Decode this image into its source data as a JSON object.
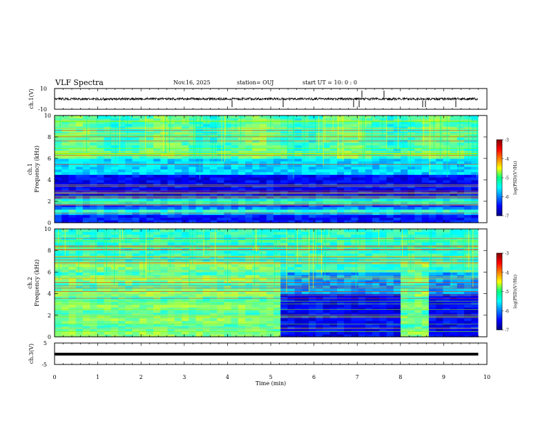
{
  "header": {
    "title": "VLF Spectra",
    "date": "Nov.16, 2025",
    "station": "station= OUJ",
    "start_ut": "start UT =   10: 0  : 0"
  },
  "chart_data": [
    {
      "id": "ch1-waveform",
      "type": "line",
      "ylabel": "ch.1(V)",
      "ylim": [
        -10,
        10
      ],
      "y_ticks": [
        "10",
        "-10"
      ],
      "baseline_level": 0,
      "xlim": [
        0,
        10
      ]
    },
    {
      "id": "ch1-spectrogram",
      "type": "heatmap",
      "ylabel": "ch.1\nFrequency (kHz)",
      "y_ticks": [
        "0",
        "2",
        "4",
        "6",
        "8",
        "10"
      ],
      "ylim": [
        0,
        10
      ],
      "xlim": [
        0,
        10
      ],
      "data_end_min": 9.8,
      "colorbar": {
        "label": "log(PSD)(V²/Hz)",
        "ticks": [
          "-3",
          "-4",
          "-5",
          "-6",
          "-7"
        ],
        "range": [
          -7,
          -3
        ]
      }
    },
    {
      "id": "ch2-spectrogram",
      "type": "heatmap",
      "ylabel": "ch.2\nFrequency (kHz)",
      "y_ticks": [
        "0",
        "2",
        "4",
        "6",
        "8",
        "10"
      ],
      "ylim": [
        0,
        10
      ],
      "xlim": [
        0,
        10
      ],
      "data_end_min": 9.8,
      "regime_change_min": 5.18,
      "quiet_gap_min": [
        8.05,
        8.58
      ],
      "colorbar": {
        "label": "log(PSD)(V²/Hz)",
        "ticks": [
          "-3",
          "-4",
          "-5",
          "-6",
          "-7"
        ],
        "range": [
          -7,
          -3
        ]
      }
    },
    {
      "id": "ch3-trace",
      "type": "line",
      "ylabel": "ch.3(V)",
      "ylim": [
        -5,
        5
      ],
      "y_ticks": [
        "5",
        "-5"
      ],
      "level": -0.2,
      "xlim": [
        0,
        10
      ]
    }
  ],
  "x_axis": {
    "label": "Time  (min)",
    "ticks": [
      "0",
      "1",
      "2",
      "3",
      "4",
      "5",
      "6",
      "7",
      "8",
      "9",
      "10"
    ]
  },
  "colors": {
    "low": "#00007f",
    "mid": "#00ff7f",
    "high": "#ff0000"
  }
}
